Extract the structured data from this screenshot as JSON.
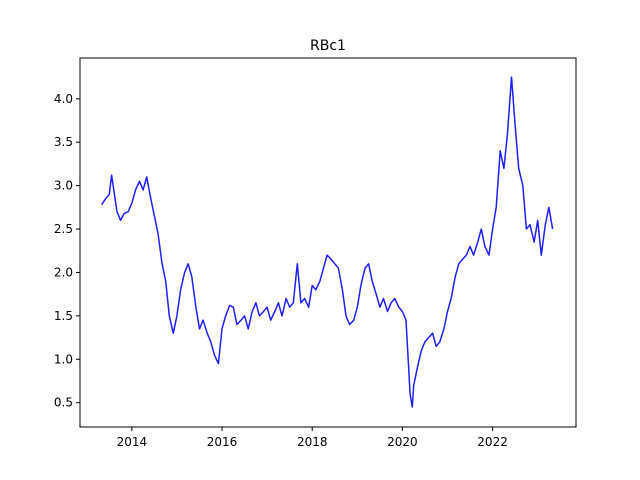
{
  "chart_data": {
    "type": "line",
    "title": "RBc1",
    "xlabel": "",
    "ylabel": "",
    "xlim": [
      2012.85,
      2023.85
    ],
    "ylim": [
      0.22,
      4.47
    ],
    "x_ticks": [
      2014,
      2016,
      2018,
      2020,
      2022
    ],
    "x_tick_labels": [
      "2014",
      "2016",
      "2018",
      "2020",
      "2022"
    ],
    "y_ticks": [
      0.5,
      1.0,
      1.5,
      2.0,
      2.5,
      3.0,
      3.5,
      4.0
    ],
    "y_tick_labels": [
      "0.5",
      "1.0",
      "1.5",
      "2.0",
      "2.5",
      "3.0",
      "3.5",
      "4.0"
    ],
    "grid": false,
    "series": [
      {
        "color": "#1f1fff",
        "x": [
          2013.33,
          2013.42,
          2013.5,
          2013.55,
          2013.6,
          2013.67,
          2013.75,
          2013.83,
          2013.92,
          2014.0,
          2014.08,
          2014.17,
          2014.25,
          2014.33,
          2014.42,
          2014.5,
          2014.58,
          2014.67,
          2014.75,
          2014.83,
          2014.92,
          2015.0,
          2015.08,
          2015.17,
          2015.25,
          2015.33,
          2015.42,
          2015.5,
          2015.58,
          2015.67,
          2015.75,
          2015.83,
          2015.92,
          2016.0,
          2016.08,
          2016.17,
          2016.25,
          2016.33,
          2016.42,
          2016.5,
          2016.58,
          2016.67,
          2016.75,
          2016.83,
          2016.92,
          2017.0,
          2017.08,
          2017.17,
          2017.25,
          2017.33,
          2017.42,
          2017.5,
          2017.58,
          2017.67,
          2017.75,
          2017.83,
          2017.92,
          2018.0,
          2018.08,
          2018.17,
          2018.25,
          2018.33,
          2018.42,
          2018.5,
          2018.58,
          2018.67,
          2018.75,
          2018.83,
          2018.92,
          2019.0,
          2019.08,
          2019.17,
          2019.25,
          2019.33,
          2019.42,
          2019.5,
          2019.58,
          2019.67,
          2019.75,
          2019.83,
          2019.92,
          2020.0,
          2020.08,
          2020.17,
          2020.22,
          2020.25,
          2020.33,
          2020.42,
          2020.5,
          2020.58,
          2020.67,
          2020.75,
          2020.83,
          2020.92,
          2021.0,
          2021.08,
          2021.17,
          2021.25,
          2021.33,
          2021.42,
          2021.5,
          2021.58,
          2021.67,
          2021.75,
          2021.83,
          2021.92,
          2022.0,
          2022.08,
          2022.17,
          2022.25,
          2022.33,
          2022.42,
          2022.5,
          2022.58,
          2022.67,
          2022.75,
          2022.83,
          2022.92,
          2023.0,
          2023.08,
          2023.17,
          2023.25,
          2023.33
        ],
        "y": [
          2.78,
          2.85,
          2.9,
          3.12,
          2.95,
          2.7,
          2.6,
          2.68,
          2.7,
          2.8,
          2.95,
          3.05,
          2.95,
          3.1,
          2.85,
          2.65,
          2.45,
          2.1,
          1.9,
          1.5,
          1.3,
          1.5,
          1.8,
          2.0,
          2.1,
          1.95,
          1.6,
          1.35,
          1.45,
          1.3,
          1.2,
          1.05,
          0.95,
          1.35,
          1.5,
          1.62,
          1.6,
          1.4,
          1.45,
          1.5,
          1.35,
          1.55,
          1.65,
          1.5,
          1.55,
          1.6,
          1.45,
          1.55,
          1.65,
          1.5,
          1.7,
          1.6,
          1.65,
          2.1,
          1.65,
          1.7,
          1.6,
          1.85,
          1.8,
          1.9,
          2.05,
          2.2,
          2.15,
          2.1,
          2.05,
          1.8,
          1.5,
          1.4,
          1.45,
          1.6,
          1.85,
          2.05,
          2.1,
          1.9,
          1.75,
          1.6,
          1.7,
          1.55,
          1.65,
          1.7,
          1.6,
          1.55,
          1.45,
          0.6,
          0.45,
          0.7,
          0.9,
          1.1,
          1.2,
          1.25,
          1.3,
          1.15,
          1.2,
          1.35,
          1.55,
          1.7,
          1.95,
          2.1,
          2.15,
          2.2,
          2.3,
          2.2,
          2.35,
          2.5,
          2.3,
          2.2,
          2.5,
          2.75,
          3.4,
          3.2,
          3.6,
          4.25,
          3.7,
          3.2,
          3.0,
          2.5,
          2.55,
          2.35,
          2.6,
          2.2,
          2.55,
          2.75,
          2.5
        ]
      }
    ]
  }
}
